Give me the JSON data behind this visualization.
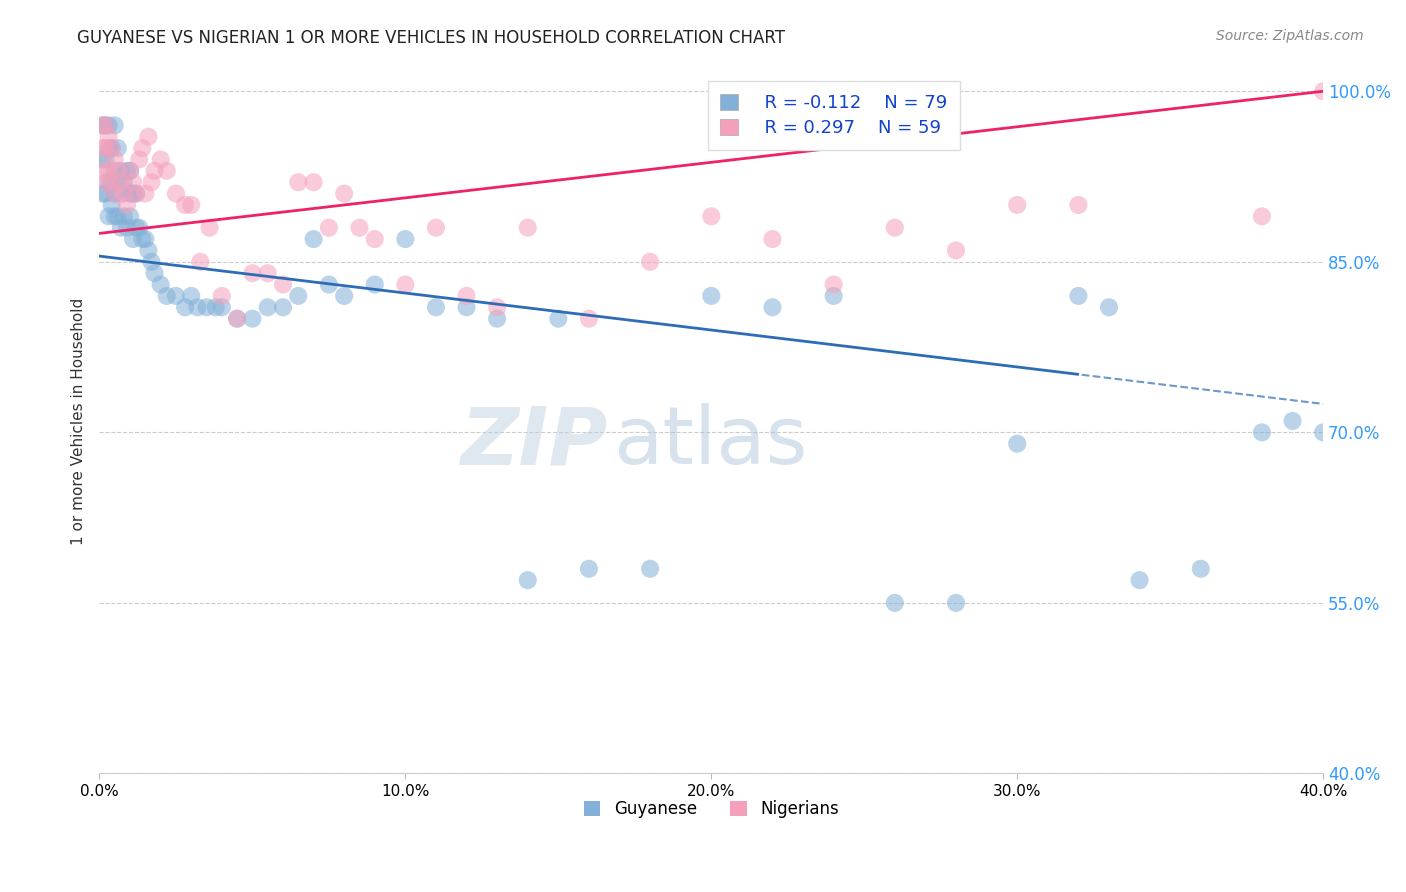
{
  "title": "GUYANESE VS NIGERIAN 1 OR MORE VEHICLES IN HOUSEHOLD CORRELATION CHART",
  "source": "Source: ZipAtlas.com",
  "ylabel": "1 or more Vehicles in Household",
  "watermark_zip": "ZIP",
  "watermark_atlas": "atlas",
  "legend_guyanese_r": "R = -0.112",
  "legend_guyanese_n": "N = 79",
  "legend_nigerians_r": "R = 0.297",
  "legend_nigerians_n": "N = 59",
  "guyanese_color": "#82b0d8",
  "nigerian_color": "#f5a0bb",
  "guyanese_line_color": "#2e6db5",
  "nigerian_line_color": "#ee2266",
  "background_color": "#ffffff",
  "xlim": [
    0.0,
    0.4
  ],
  "ylim": [
    0.4,
    1.02
  ],
  "xticks": [
    0.0,
    0.1,
    0.2,
    0.3,
    0.4
  ],
  "xtick_labels": [
    "0.0%",
    "10.0%",
    "20.0%",
    "30.0%",
    "40.0%"
  ],
  "yticks": [
    0.4,
    0.55,
    0.7,
    0.85,
    1.0
  ],
  "ytick_labels": [
    "40.0%",
    "55.0%",
    "70.0%",
    "85.0%",
    "100.0%"
  ],
  "guyanese_x": [
    0.001,
    0.001,
    0.001,
    0.002,
    0.002,
    0.002,
    0.003,
    0.003,
    0.003,
    0.003,
    0.004,
    0.004,
    0.004,
    0.005,
    0.005,
    0.005,
    0.005,
    0.006,
    0.006,
    0.006,
    0.007,
    0.007,
    0.007,
    0.008,
    0.008,
    0.009,
    0.009,
    0.01,
    0.01,
    0.01,
    0.011,
    0.011,
    0.012,
    0.012,
    0.013,
    0.014,
    0.015,
    0.016,
    0.017,
    0.018,
    0.02,
    0.022,
    0.025,
    0.028,
    0.03,
    0.032,
    0.035,
    0.038,
    0.04,
    0.045,
    0.05,
    0.055,
    0.06,
    0.065,
    0.07,
    0.075,
    0.08,
    0.09,
    0.1,
    0.11,
    0.12,
    0.13,
    0.14,
    0.15,
    0.16,
    0.18,
    0.2,
    0.22,
    0.24,
    0.26,
    0.28,
    0.3,
    0.32,
    0.33,
    0.34,
    0.36,
    0.38,
    0.39,
    0.4
  ],
  "guyanese_y": [
    0.97,
    0.94,
    0.91,
    0.97,
    0.94,
    0.91,
    0.97,
    0.95,
    0.92,
    0.89,
    0.95,
    0.92,
    0.9,
    0.97,
    0.93,
    0.91,
    0.89,
    0.95,
    0.92,
    0.89,
    0.93,
    0.91,
    0.88,
    0.92,
    0.89,
    0.93,
    0.88,
    0.93,
    0.91,
    0.89,
    0.91,
    0.87,
    0.91,
    0.88,
    0.88,
    0.87,
    0.87,
    0.86,
    0.85,
    0.84,
    0.83,
    0.82,
    0.82,
    0.81,
    0.82,
    0.81,
    0.81,
    0.81,
    0.81,
    0.8,
    0.8,
    0.81,
    0.81,
    0.82,
    0.87,
    0.83,
    0.82,
    0.83,
    0.87,
    0.81,
    0.81,
    0.8,
    0.57,
    0.8,
    0.58,
    0.58,
    0.82,
    0.81,
    0.82,
    0.55,
    0.55,
    0.69,
    0.82,
    0.81,
    0.57,
    0.58,
    0.7,
    0.71,
    0.7
  ],
  "nigerian_x": [
    0.001,
    0.001,
    0.001,
    0.002,
    0.002,
    0.002,
    0.003,
    0.003,
    0.004,
    0.004,
    0.005,
    0.005,
    0.006,
    0.007,
    0.008,
    0.009,
    0.01,
    0.011,
    0.012,
    0.013,
    0.014,
    0.015,
    0.016,
    0.017,
    0.018,
    0.02,
    0.022,
    0.025,
    0.028,
    0.03,
    0.033,
    0.036,
    0.04,
    0.045,
    0.05,
    0.055,
    0.06,
    0.065,
    0.07,
    0.075,
    0.08,
    0.085,
    0.09,
    0.1,
    0.11,
    0.12,
    0.13,
    0.14,
    0.16,
    0.18,
    0.2,
    0.22,
    0.24,
    0.26,
    0.28,
    0.3,
    0.32,
    0.38,
    0.4
  ],
  "nigerian_y": [
    0.97,
    0.95,
    0.93,
    0.97,
    0.95,
    0.92,
    0.96,
    0.93,
    0.95,
    0.92,
    0.94,
    0.91,
    0.93,
    0.92,
    0.91,
    0.9,
    0.93,
    0.92,
    0.91,
    0.94,
    0.95,
    0.91,
    0.96,
    0.92,
    0.93,
    0.94,
    0.93,
    0.91,
    0.9,
    0.9,
    0.85,
    0.88,
    0.82,
    0.8,
    0.84,
    0.84,
    0.83,
    0.92,
    0.92,
    0.88,
    0.91,
    0.88,
    0.87,
    0.83,
    0.88,
    0.82,
    0.81,
    0.88,
    0.8,
    0.85,
    0.89,
    0.87,
    0.83,
    0.88,
    0.86,
    0.9,
    0.9,
    0.89,
    1.0
  ]
}
